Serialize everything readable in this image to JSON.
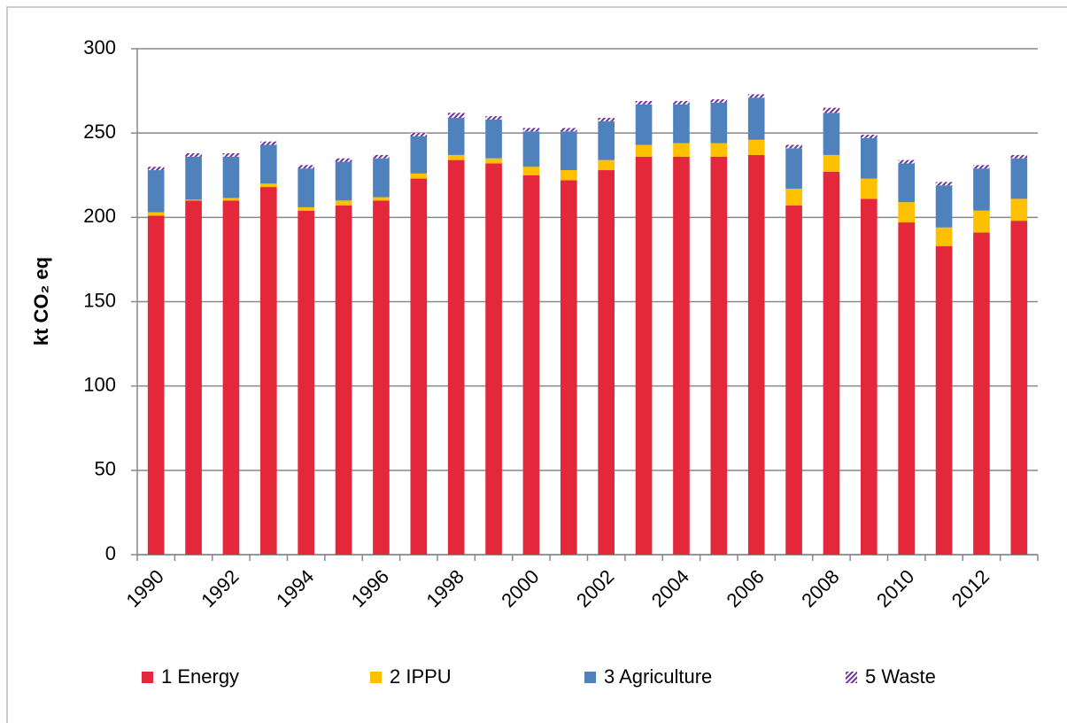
{
  "chart_data": {
    "type": "stacked_bar",
    "y_label": "kt CO₂ eq",
    "categories": [
      "1990",
      null,
      "1992",
      null,
      "1994",
      null,
      "1996",
      null,
      "1998",
      null,
      "2000",
      null,
      "2002",
      null,
      "2004",
      null,
      "2006",
      null,
      "2008",
      null,
      "2010",
      null,
      "2012",
      null
    ],
    "series": [
      {
        "name": "1 Energy",
        "color": "#e3283c",
        "values": [
          201,
          210,
          210,
          218,
          204,
          207,
          210,
          223,
          234,
          232,
          225,
          222,
          228,
          236,
          236,
          236,
          237,
          207,
          227,
          211,
          197,
          183,
          191,
          198
        ]
      },
      {
        "name": "2 IPPU",
        "color": "#ffc000",
        "values": [
          2,
          0.5,
          1.5,
          2,
          2,
          3,
          2,
          3,
          3,
          3,
          5,
          6,
          6,
          7,
          8,
          8,
          9,
          10,
          10,
          12,
          12,
          11,
          13,
          13
        ]
      },
      {
        "name": "3 Agriculture",
        "color": "#4f81bd",
        "values": [
          25,
          25.5,
          24.5,
          23,
          23,
          23,
          23,
          22,
          22,
          23,
          21,
          23,
          23,
          24,
          23,
          24,
          25,
          24,
          25,
          24,
          23,
          25,
          25,
          24
        ]
      },
      {
        "name": "5 Waste",
        "color": "#7030a0",
        "pattern": "hatch",
        "values": [
          2,
          2,
          2,
          2,
          2,
          2,
          2,
          2,
          3,
          2,
          2,
          2,
          2,
          2,
          2,
          2,
          2,
          2,
          3,
          2,
          2,
          2,
          2,
          2
        ]
      }
    ],
    "ylim": [
      0,
      300
    ],
    "yticks": [
      0,
      50,
      100,
      150,
      200,
      250,
      300
    ],
    "grid": true,
    "legend": "bottom"
  }
}
